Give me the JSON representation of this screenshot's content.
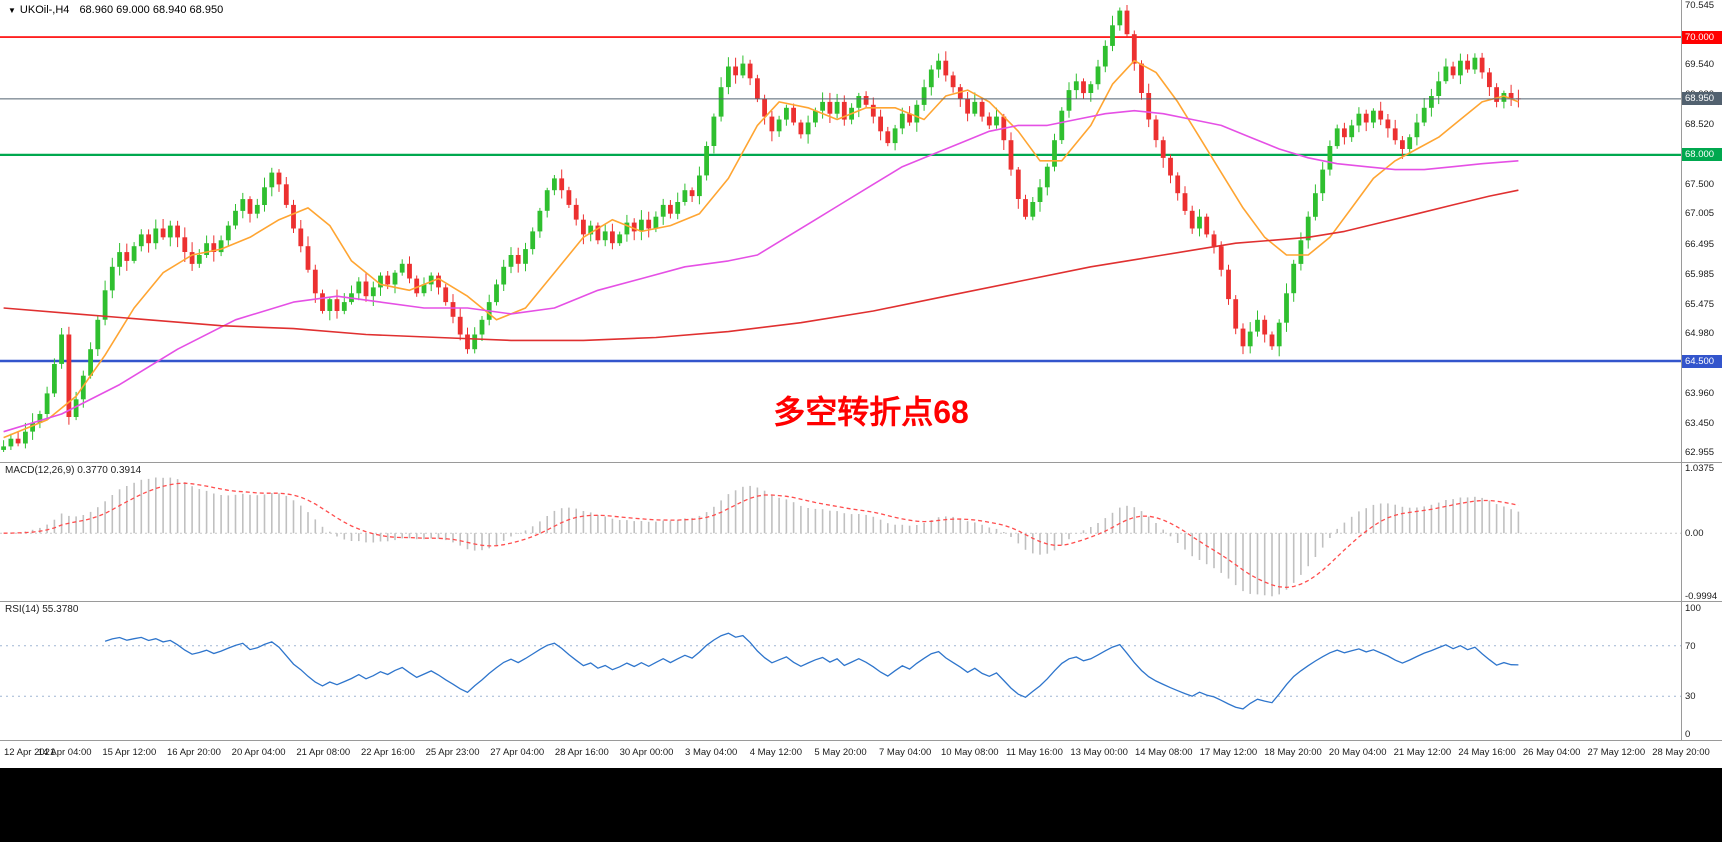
{
  "window": {
    "menu_arrow": "▼",
    "title": "UKOil-,H4",
    "ohlc_text": "68.960 69.000 68.940 68.950"
  },
  "panes": {
    "macd_label": "MACD(12,26,9) 0.3770 0.3914",
    "rsi_label": "RSI(14) 55.3780"
  },
  "colors": {
    "bull": "#2FBF2F",
    "bear": "#EC3030",
    "ma_fast": "#FFA532",
    "ma_mid": "#E550E5",
    "ma_slow": "#E03030",
    "macd_hist": "#C0C0C0",
    "macd_signal": "#FF4D4D",
    "rsi_line": "#2E75CC",
    "rsi_level": "#9FB6D4",
    "axis_text": "#1a1a1a"
  },
  "chart_data": [
    {
      "type": "candlestick",
      "symbol": "UKOil-",
      "timeframe": "H4",
      "current_ohlc": {
        "open": 68.96,
        "high": 69.0,
        "low": 68.94,
        "close": 68.95
      },
      "y_range": [
        62.955,
        70.545
      ],
      "y_ticks": [
        "70.545",
        "69.540",
        "69.030",
        "68.520",
        "67.500",
        "67.005",
        "66.495",
        "65.985",
        "65.475",
        "64.980",
        "63.960",
        "63.450",
        "62.955"
      ],
      "x_labels": [
        "12 Apr 2021",
        "14 Apr 04:00",
        "15 Apr 12:00",
        "16 Apr 20:00",
        "20 Apr 04:00",
        "21 Apr 08:00",
        "22 Apr 16:00",
        "25 Apr 23:00",
        "27 Apr 04:00",
        "28 Apr 16:00",
        "30 Apr 00:00",
        "3 May 04:00",
        "4 May 12:00",
        "5 May 20:00",
        "7 May 04:00",
        "10 May 08:00",
        "11 May 16:00",
        "13 May 00:00",
        "14 May 08:00",
        "17 May 12:00",
        "18 May 20:00",
        "20 May 04:00",
        "21 May 12:00",
        "24 May 16:00",
        "26 May 04:00",
        "27 May 12:00",
        "28 May 20:00"
      ],
      "closes": [
        63.05,
        63.18,
        63.1,
        63.3,
        63.45,
        63.6,
        63.95,
        64.45,
        64.95,
        63.55,
        63.85,
        64.25,
        64.7,
        65.2,
        65.7,
        66.1,
        66.35,
        66.2,
        66.45,
        66.65,
        66.5,
        66.75,
        66.6,
        66.8,
        66.6,
        66.35,
        66.15,
        66.3,
        66.5,
        66.35,
        66.55,
        66.8,
        67.05,
        67.25,
        67.0,
        67.15,
        67.45,
        67.7,
        67.5,
        67.15,
        66.75,
        66.45,
        66.05,
        65.65,
        65.35,
        65.55,
        65.35,
        65.5,
        65.65,
        65.85,
        65.6,
        65.75,
        65.95,
        65.8,
        66.0,
        66.15,
        65.9,
        65.65,
        65.8,
        65.95,
        65.75,
        65.5,
        65.25,
        64.95,
        64.7,
        64.95,
        65.2,
        65.5,
        65.8,
        66.1,
        66.3,
        66.15,
        66.4,
        66.7,
        67.05,
        67.4,
        67.6,
        67.4,
        67.15,
        66.9,
        66.65,
        66.8,
        66.55,
        66.7,
        66.5,
        66.65,
        66.85,
        66.7,
        66.9,
        66.75,
        66.95,
        67.15,
        67.0,
        67.2,
        67.4,
        67.3,
        67.65,
        68.15,
        68.65,
        69.15,
        69.5,
        69.35,
        69.55,
        69.3,
        68.95,
        68.65,
        68.4,
        68.6,
        68.8,
        68.55,
        68.35,
        68.55,
        68.75,
        68.9,
        68.7,
        68.9,
        68.6,
        68.8,
        69.0,
        68.85,
        68.65,
        68.4,
        68.2,
        68.45,
        68.7,
        68.55,
        68.85,
        69.15,
        69.45,
        69.6,
        69.35,
        69.15,
        68.95,
        68.7,
        68.9,
        68.65,
        68.5,
        68.65,
        68.25,
        67.75,
        67.25,
        66.95,
        67.2,
        67.45,
        67.8,
        68.25,
        68.75,
        69.1,
        69.25,
        69.05,
        69.2,
        69.5,
        69.85,
        70.2,
        70.45,
        70.05,
        69.55,
        69.05,
        68.6,
        68.25,
        67.95,
        67.65,
        67.35,
        67.05,
        66.75,
        66.95,
        66.65,
        66.45,
        66.05,
        65.55,
        65.05,
        64.75,
        65.0,
        65.2,
        64.95,
        64.75,
        65.15,
        65.65,
        66.15,
        66.55,
        66.95,
        67.35,
        67.75,
        68.15,
        68.45,
        68.3,
        68.5,
        68.7,
        68.55,
        68.75,
        68.6,
        68.45,
        68.25,
        68.1,
        68.3,
        68.55,
        68.8,
        69.0,
        69.25,
        69.5,
        69.35,
        69.6,
        69.45,
        69.65,
        69.4,
        69.15,
        68.9,
        69.05,
        68.96,
        68.95
      ],
      "hlines": [
        {
          "price": 70.0,
          "label": "70.000",
          "color": "#FF0000",
          "width": 1.6
        },
        {
          "price": 68.0,
          "label": "68.000",
          "color": "#00A84F",
          "width": 2.2
        },
        {
          "price": 64.5,
          "label": "64.500",
          "color": "#3355CC",
          "width": 2.6
        },
        {
          "price": 68.95,
          "label": "68.950",
          "color": "#52616F",
          "width": 1,
          "role": "current-price"
        }
      ],
      "overlays": [
        {
          "name": "ma-fast-orange",
          "color": "#FFA532",
          "points": [
            [
              0,
              63.2
            ],
            [
              6,
              63.5
            ],
            [
              10,
              63.9
            ],
            [
              14,
              64.6
            ],
            [
              18,
              65.4
            ],
            [
              22,
              66.0
            ],
            [
              26,
              66.3
            ],
            [
              30,
              66.4
            ],
            [
              34,
              66.6
            ],
            [
              38,
              66.9
            ],
            [
              42,
              67.1
            ],
            [
              45,
              66.8
            ],
            [
              48,
              66.2
            ],
            [
              52,
              65.8
            ],
            [
              56,
              65.7
            ],
            [
              60,
              65.9
            ],
            [
              64,
              65.6
            ],
            [
              68,
              65.2
            ],
            [
              72,
              65.4
            ],
            [
              76,
              66.0
            ],
            [
              80,
              66.6
            ],
            [
              84,
              66.9
            ],
            [
              88,
              66.7
            ],
            [
              92,
              66.8
            ],
            [
              96,
              67.0
            ],
            [
              100,
              67.6
            ],
            [
              104,
              68.5
            ],
            [
              107,
              68.9
            ],
            [
              111,
              68.8
            ],
            [
              115,
              68.6
            ],
            [
              119,
              68.8
            ],
            [
              123,
              68.8
            ],
            [
              127,
              68.6
            ],
            [
              130,
              69.0
            ],
            [
              133,
              69.1
            ],
            [
              136,
              68.9
            ],
            [
              140,
              68.4
            ],
            [
              143,
              67.9
            ],
            [
              146,
              67.9
            ],
            [
              150,
              68.5
            ],
            [
              153,
              69.2
            ],
            [
              156,
              69.6
            ],
            [
              159,
              69.4
            ],
            [
              162,
              68.9
            ],
            [
              165,
              68.3
            ],
            [
              168,
              67.7
            ],
            [
              171,
              67.1
            ],
            [
              174,
              66.6
            ],
            [
              177,
              66.3
            ],
            [
              180,
              66.3
            ],
            [
              183,
              66.6
            ],
            [
              186,
              67.1
            ],
            [
              189,
              67.6
            ],
            [
              192,
              67.9
            ],
            [
              195,
              68.1
            ],
            [
              198,
              68.3
            ],
            [
              201,
              68.6
            ],
            [
              204,
              68.9
            ],
            [
              207,
              69.0
            ],
            [
              209,
              68.9
            ]
          ]
        },
        {
          "name": "ma-mid-magenta",
          "color": "#E550E5",
          "points": [
            [
              0,
              63.3
            ],
            [
              8,
              63.6
            ],
            [
              16,
              64.1
            ],
            [
              24,
              64.7
            ],
            [
              32,
              65.2
            ],
            [
              40,
              65.5
            ],
            [
              46,
              65.6
            ],
            [
              52,
              65.5
            ],
            [
              58,
              65.4
            ],
            [
              64,
              65.4
            ],
            [
              70,
              65.3
            ],
            [
              76,
              65.4
            ],
            [
              82,
              65.7
            ],
            [
              88,
              65.9
            ],
            [
              94,
              66.1
            ],
            [
              100,
              66.2
            ],
            [
              104,
              66.3
            ],
            [
              108,
              66.6
            ],
            [
              112,
              66.9
            ],
            [
              116,
              67.2
            ],
            [
              120,
              67.5
            ],
            [
              124,
              67.8
            ],
            [
              128,
              68.0
            ],
            [
              132,
              68.2
            ],
            [
              136,
              68.4
            ],
            [
              140,
              68.5
            ],
            [
              144,
              68.5
            ],
            [
              148,
              68.6
            ],
            [
              152,
              68.7
            ],
            [
              156,
              68.75
            ],
            [
              160,
              68.7
            ],
            [
              164,
              68.6
            ],
            [
              168,
              68.5
            ],
            [
              172,
              68.3
            ],
            [
              176,
              68.1
            ],
            [
              180,
              67.95
            ],
            [
              184,
              67.85
            ],
            [
              188,
              67.8
            ],
            [
              192,
              67.75
            ],
            [
              196,
              67.75
            ],
            [
              200,
              67.8
            ],
            [
              204,
              67.85
            ],
            [
              209,
              67.9
            ]
          ]
        },
        {
          "name": "ma-slow-red",
          "color": "#E03030",
          "points": [
            [
              0,
              65.4
            ],
            [
              10,
              65.3
            ],
            [
              20,
              65.2
            ],
            [
              30,
              65.1
            ],
            [
              40,
              65.05
            ],
            [
              50,
              64.95
            ],
            [
              60,
              64.9
            ],
            [
              70,
              64.85
            ],
            [
              80,
              64.85
            ],
            [
              90,
              64.9
            ],
            [
              100,
              65.0
            ],
            [
              110,
              65.15
            ],
            [
              120,
              65.35
            ],
            [
              130,
              65.6
            ],
            [
              140,
              65.85
            ],
            [
              150,
              66.1
            ],
            [
              155,
              66.2
            ],
            [
              160,
              66.3
            ],
            [
              165,
              66.4
            ],
            [
              170,
              66.5
            ],
            [
              175,
              66.55
            ],
            [
              180,
              66.6
            ],
            [
              185,
              66.7
            ],
            [
              190,
              66.85
            ],
            [
              195,
              67.0
            ],
            [
              200,
              67.15
            ],
            [
              205,
              67.3
            ],
            [
              209,
              67.4
            ]
          ]
        }
      ],
      "annotation": {
        "text": "多空转折点68",
        "color": "#FF0000",
        "x_frac": 0.518,
        "y_price": 63.45
      }
    },
    {
      "type": "macd-histogram",
      "label": "MACD(12,26,9) 0.3770 0.3914",
      "params": {
        "fast": 12,
        "slow": 26,
        "signal": 9
      },
      "current": {
        "macd": 0.377,
        "signal": 0.3914
      },
      "y_range": [
        -0.9994,
        1.0375
      ],
      "y_ticks": [
        "1.0375",
        "0.00",
        "-0.9994"
      ]
    },
    {
      "type": "rsi",
      "label": "RSI(14) 55.3780",
      "period": 14,
      "current": 55.378,
      "levels": [
        70,
        30
      ],
      "y_range": [
        0,
        100
      ],
      "y_ticks": [
        "100",
        "70",
        "30",
        "0"
      ]
    }
  ]
}
